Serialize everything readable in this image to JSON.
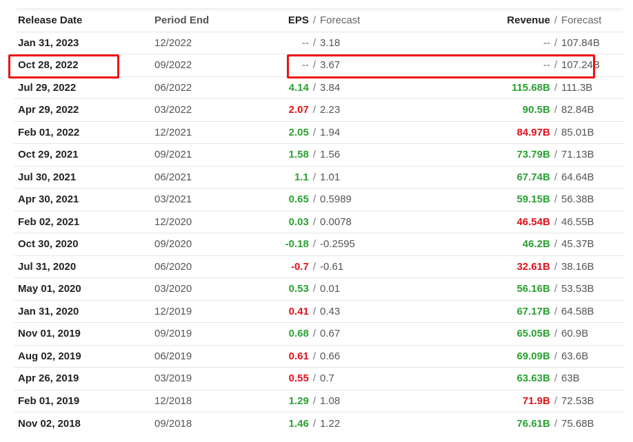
{
  "headers": {
    "release_date": "Release Date",
    "period_end": "Period End",
    "eps": "EPS",
    "eps_forecast": "Forecast",
    "revenue": "Revenue",
    "revenue_forecast": "Forecast",
    "separator": "/"
  },
  "colors": {
    "beat": "#2aa131",
    "miss": "#e3101b",
    "highlight_box": "#ee1111"
  },
  "highlighted_row_index": 1,
  "rows": [
    {
      "date": "Jan 31, 2023",
      "period": "12/2022",
      "eps": "--",
      "eps_forecast": "3.18",
      "eps_status": "pending",
      "revenue": "--",
      "revenue_forecast": "107.84B",
      "rev_status": "pending"
    },
    {
      "date": "Oct 28, 2022",
      "period": "09/2022",
      "eps": "--",
      "eps_forecast": "3.67",
      "eps_status": "pending",
      "revenue": "--",
      "revenue_forecast": "107.24B",
      "rev_status": "pending"
    },
    {
      "date": "Jul 29, 2022",
      "period": "06/2022",
      "eps": "4.14",
      "eps_forecast": "3.84",
      "eps_status": "beat",
      "revenue": "115.68B",
      "revenue_forecast": "111.3B",
      "rev_status": "beat"
    },
    {
      "date": "Apr 29, 2022",
      "period": "03/2022",
      "eps": "2.07",
      "eps_forecast": "2.23",
      "eps_status": "miss",
      "revenue": "90.5B",
      "revenue_forecast": "82.84B",
      "rev_status": "beat"
    },
    {
      "date": "Feb 01, 2022",
      "period": "12/2021",
      "eps": "2.05",
      "eps_forecast": "1.94",
      "eps_status": "beat",
      "revenue": "84.97B",
      "revenue_forecast": "85.01B",
      "rev_status": "miss"
    },
    {
      "date": "Oct 29, 2021",
      "period": "09/2021",
      "eps": "1.58",
      "eps_forecast": "1.56",
      "eps_status": "beat",
      "revenue": "73.79B",
      "revenue_forecast": "71.13B",
      "rev_status": "beat"
    },
    {
      "date": "Jul 30, 2021",
      "period": "06/2021",
      "eps": "1.1",
      "eps_forecast": "1.01",
      "eps_status": "beat",
      "revenue": "67.74B",
      "revenue_forecast": "64.64B",
      "rev_status": "beat"
    },
    {
      "date": "Apr 30, 2021",
      "period": "03/2021",
      "eps": "0.65",
      "eps_forecast": "0.5989",
      "eps_status": "beat",
      "revenue": "59.15B",
      "revenue_forecast": "56.38B",
      "rev_status": "beat"
    },
    {
      "date": "Feb 02, 2021",
      "period": "12/2020",
      "eps": "0.03",
      "eps_forecast": "0.0078",
      "eps_status": "beat",
      "revenue": "46.54B",
      "revenue_forecast": "46.55B",
      "rev_status": "miss"
    },
    {
      "date": "Oct 30, 2020",
      "period": "09/2020",
      "eps": "-0.18",
      "eps_forecast": "-0.2595",
      "eps_status": "beat",
      "revenue": "46.2B",
      "revenue_forecast": "45.37B",
      "rev_status": "beat"
    },
    {
      "date": "Jul 31, 2020",
      "period": "06/2020",
      "eps": "-0.7",
      "eps_forecast": "-0.61",
      "eps_status": "miss",
      "revenue": "32.61B",
      "revenue_forecast": "38.16B",
      "rev_status": "miss"
    },
    {
      "date": "May 01, 2020",
      "period": "03/2020",
      "eps": "0.53",
      "eps_forecast": "0.01",
      "eps_status": "beat",
      "revenue": "56.16B",
      "revenue_forecast": "53.53B",
      "rev_status": "beat"
    },
    {
      "date": "Jan 31, 2020",
      "period": "12/2019",
      "eps": "0.41",
      "eps_forecast": "0.43",
      "eps_status": "miss",
      "revenue": "67.17B",
      "revenue_forecast": "64.58B",
      "rev_status": "beat"
    },
    {
      "date": "Nov 01, 2019",
      "period": "09/2019",
      "eps": "0.68",
      "eps_forecast": "0.67",
      "eps_status": "beat",
      "revenue": "65.05B",
      "revenue_forecast": "60.9B",
      "rev_status": "beat"
    },
    {
      "date": "Aug 02, 2019",
      "period": "06/2019",
      "eps": "0.61",
      "eps_forecast": "0.66",
      "eps_status": "miss",
      "revenue": "69.09B",
      "revenue_forecast": "63.6B",
      "rev_status": "beat"
    },
    {
      "date": "Apr 26, 2019",
      "period": "03/2019",
      "eps": "0.55",
      "eps_forecast": "0.7",
      "eps_status": "miss",
      "revenue": "63.63B",
      "revenue_forecast": "63B",
      "rev_status": "beat"
    },
    {
      "date": "Feb 01, 2019",
      "period": "12/2018",
      "eps": "1.29",
      "eps_forecast": "1.08",
      "eps_status": "beat",
      "revenue": "71.9B",
      "revenue_forecast": "72.53B",
      "rev_status": "miss"
    },
    {
      "date": "Nov 02, 2018",
      "period": "09/2018",
      "eps": "1.46",
      "eps_forecast": "1.22",
      "eps_status": "beat",
      "revenue": "76.61B",
      "revenue_forecast": "75.68B",
      "rev_status": "beat"
    }
  ]
}
